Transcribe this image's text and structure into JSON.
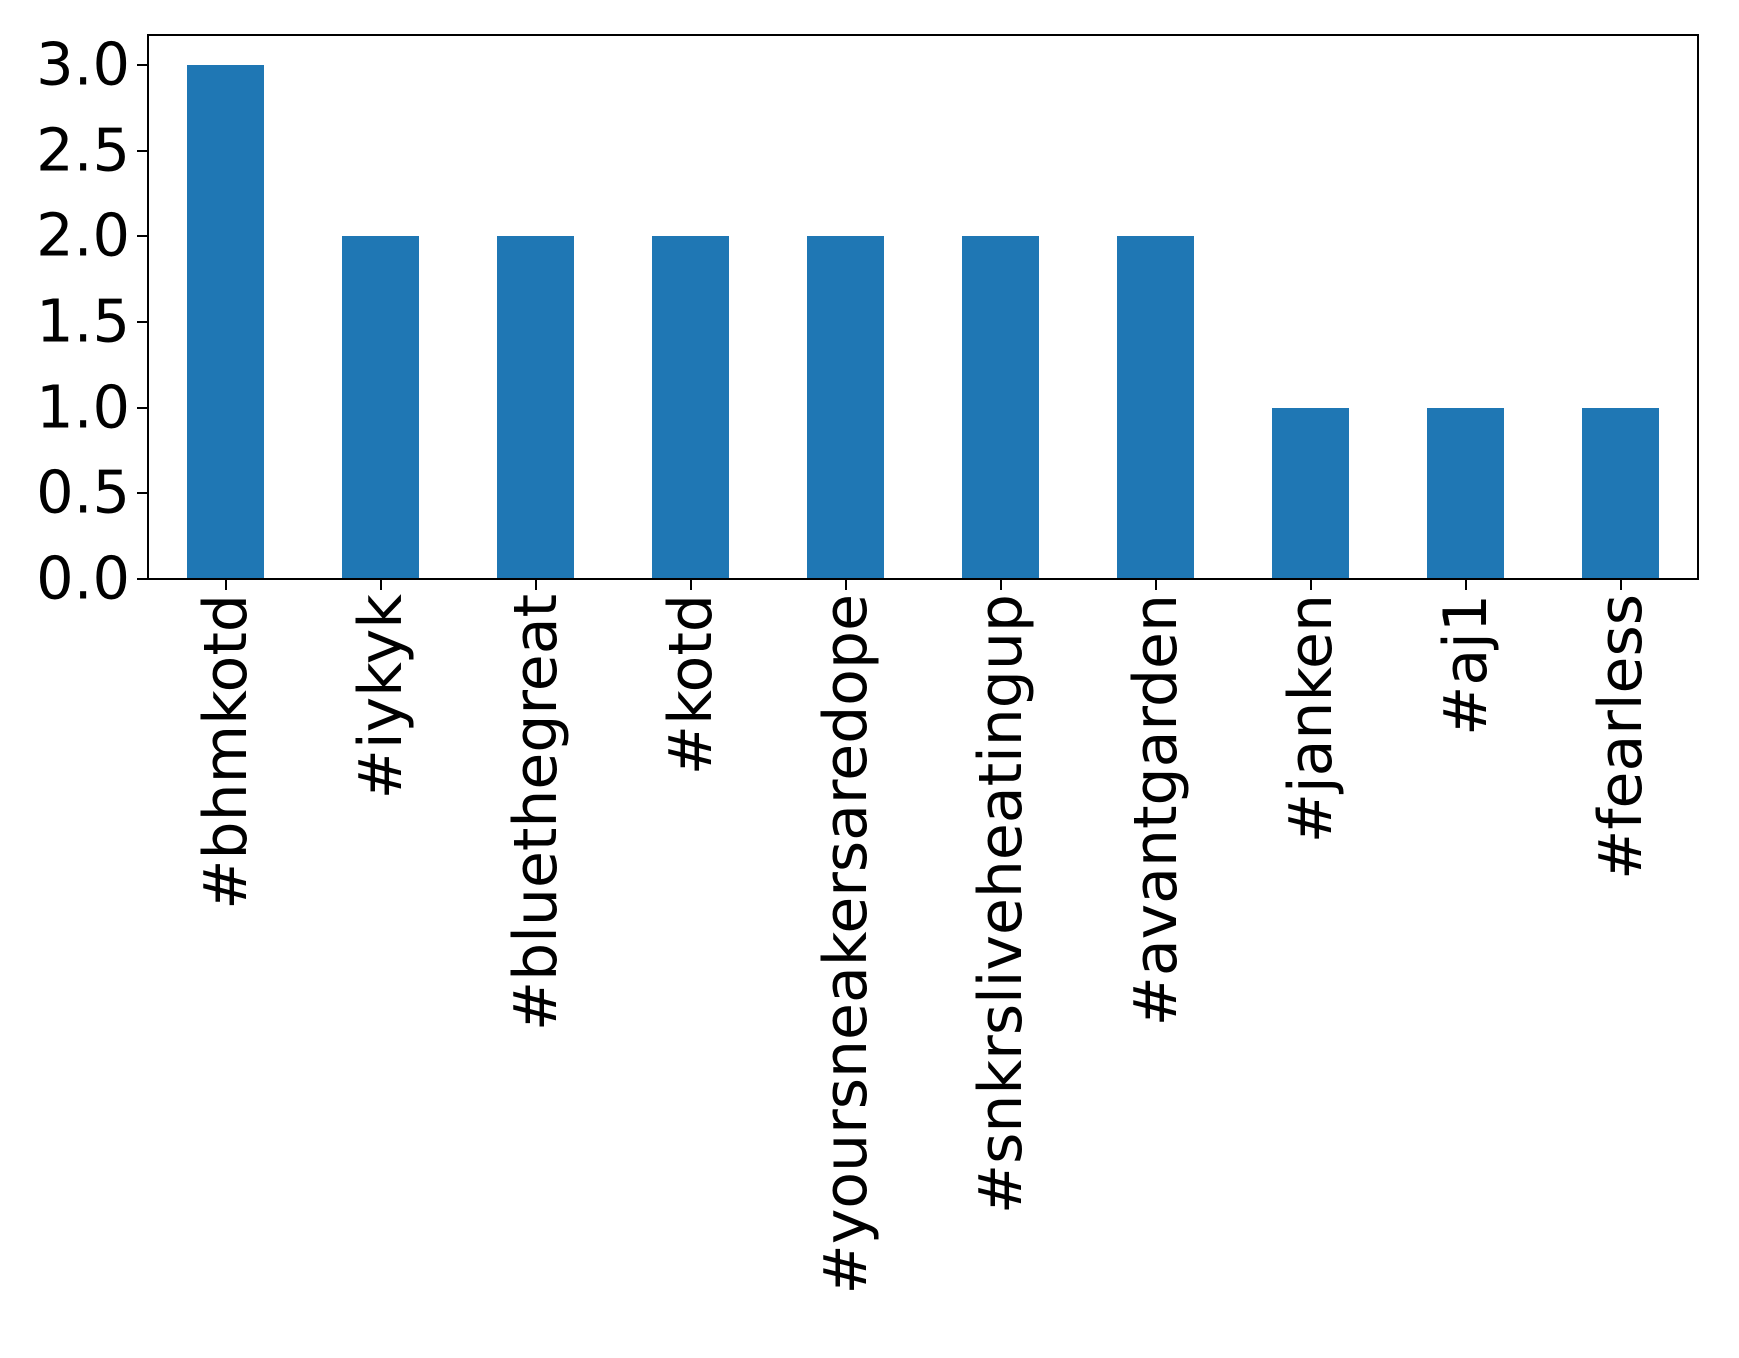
{
  "chart_data": {
    "type": "bar",
    "categories": [
      "#bhmkotd",
      "#iykyk",
      "#bluethegreat",
      "#kotd",
      "#yoursneakersaredope",
      "#snkrsliveheatingup",
      "#avantgarden",
      "#janken",
      "#aj1",
      "#fearless"
    ],
    "values": [
      3,
      2,
      2,
      2,
      2,
      2,
      2,
      1,
      1,
      1
    ],
    "title": "",
    "xlabel": "",
    "ylabel": "",
    "ylim": [
      0,
      3.18
    ],
    "yticks": [
      0.0,
      0.5,
      1.0,
      1.5,
      2.0,
      2.5,
      3.0
    ],
    "ytick_labels": [
      "0.0",
      "0.5",
      "1.0",
      "1.5",
      "2.0",
      "2.5",
      "3.0"
    ],
    "bar_color": "#1f77b4",
    "axis_color": "#000000",
    "background_color": "#ffffff",
    "bar_width_fraction": 0.5,
    "x_tick_rotation_deg": 90,
    "grid": "off",
    "legend": "none"
  }
}
